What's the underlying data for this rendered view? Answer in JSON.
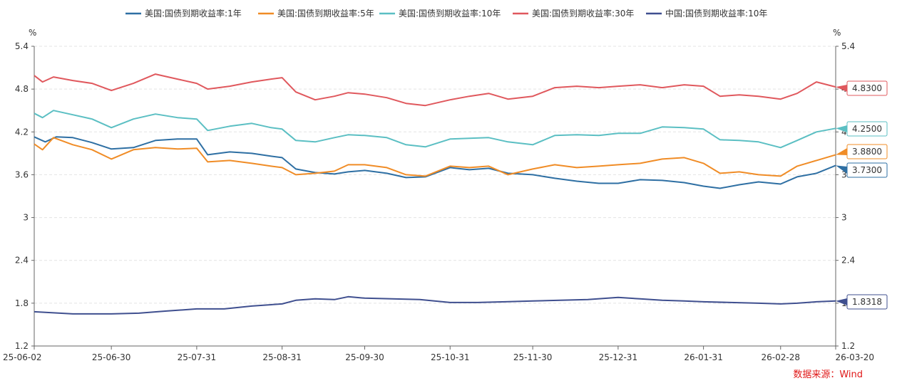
{
  "source_note": "数据来源：Wind",
  "chart_data": {
    "type": "line",
    "title": "",
    "y_unit_left": "%",
    "y_unit_right": "%",
    "ylim": [
      1.2,
      5.4
    ],
    "y_ticks": [
      "1.2",
      "1.8",
      "2.4",
      "3",
      "3.6",
      "4.2",
      "4.8",
      "5.4"
    ],
    "x_range": [
      "2025-06-02",
      "2026-03-20"
    ],
    "x_ticks": [
      {
        "label": "25-06-02",
        "date": "2025-06-02"
      },
      {
        "label": "25-06-30",
        "date": "2025-06-30"
      },
      {
        "label": "25-07-31",
        "date": "2025-07-31"
      },
      {
        "label": "25-08-31",
        "date": "2025-08-31"
      },
      {
        "label": "25-09-30",
        "date": "2025-09-30"
      },
      {
        "label": "25-10-31",
        "date": "2025-10-31"
      },
      {
        "label": "25-11-30",
        "date": "2025-11-30"
      },
      {
        "label": "25-12-31",
        "date": "2025-12-31"
      },
      {
        "label": "26-01-31",
        "date": "2026-01-31"
      },
      {
        "label": "26-02-28",
        "date": "2026-02-28"
      },
      {
        "label": "26-03-20",
        "date": "2026-03-20"
      }
    ],
    "grid": true,
    "legend_position": "top",
    "series": [
      {
        "name": "美国:国债到期收益率:1年",
        "color": "#2e6fa3",
        "last_label": "3.7300",
        "points": [
          [
            "2025-06-02",
            4.13
          ],
          [
            "2025-06-06",
            4.06
          ],
          [
            "2025-06-10",
            4.13
          ],
          [
            "2025-06-16",
            4.12
          ],
          [
            "2025-06-23",
            4.05
          ],
          [
            "2025-06-30",
            3.96
          ],
          [
            "2025-07-08",
            3.98
          ],
          [
            "2025-07-16",
            4.08
          ],
          [
            "2025-07-24",
            4.1
          ],
          [
            "2025-07-31",
            4.1
          ],
          [
            "2025-08-04",
            3.88
          ],
          [
            "2025-08-12",
            3.92
          ],
          [
            "2025-08-20",
            3.9
          ],
          [
            "2025-08-27",
            3.86
          ],
          [
            "2025-08-31",
            3.84
          ],
          [
            "2025-09-05",
            3.68
          ],
          [
            "2025-09-12",
            3.63
          ],
          [
            "2025-09-19",
            3.61
          ],
          [
            "2025-09-24",
            3.64
          ],
          [
            "2025-09-30",
            3.66
          ],
          [
            "2025-10-08",
            3.62
          ],
          [
            "2025-10-15",
            3.56
          ],
          [
            "2025-10-22",
            3.57
          ],
          [
            "2025-10-31",
            3.7
          ],
          [
            "2025-11-07",
            3.67
          ],
          [
            "2025-11-14",
            3.69
          ],
          [
            "2025-11-21",
            3.62
          ],
          [
            "2025-11-30",
            3.6
          ],
          [
            "2025-12-08",
            3.55
          ],
          [
            "2025-12-16",
            3.51
          ],
          [
            "2025-12-24",
            3.48
          ],
          [
            "2025-12-31",
            3.48
          ],
          [
            "2026-01-08",
            3.53
          ],
          [
            "2026-01-16",
            3.52
          ],
          [
            "2026-01-24",
            3.49
          ],
          [
            "2026-01-31",
            3.44
          ],
          [
            "2026-02-06",
            3.41
          ],
          [
            "2026-02-13",
            3.46
          ],
          [
            "2026-02-20",
            3.5
          ],
          [
            "2026-02-28",
            3.47
          ],
          [
            "2026-03-06",
            3.57
          ],
          [
            "2026-03-13",
            3.62
          ],
          [
            "2026-03-20",
            3.73
          ]
        ]
      },
      {
        "name": "美国:国债到期收益率:5年",
        "color": "#f08c26",
        "last_label": "3.8800",
        "points": [
          [
            "2025-06-02",
            4.03
          ],
          [
            "2025-06-05",
            3.95
          ],
          [
            "2025-06-09",
            4.12
          ],
          [
            "2025-06-16",
            4.02
          ],
          [
            "2025-06-23",
            3.95
          ],
          [
            "2025-06-30",
            3.82
          ],
          [
            "2025-07-08",
            3.95
          ],
          [
            "2025-07-16",
            3.98
          ],
          [
            "2025-07-24",
            3.96
          ],
          [
            "2025-07-31",
            3.97
          ],
          [
            "2025-08-04",
            3.78
          ],
          [
            "2025-08-12",
            3.8
          ],
          [
            "2025-08-20",
            3.76
          ],
          [
            "2025-08-27",
            3.72
          ],
          [
            "2025-08-31",
            3.7
          ],
          [
            "2025-09-05",
            3.6
          ],
          [
            "2025-09-12",
            3.62
          ],
          [
            "2025-09-19",
            3.65
          ],
          [
            "2025-09-24",
            3.74
          ],
          [
            "2025-09-30",
            3.74
          ],
          [
            "2025-10-08",
            3.7
          ],
          [
            "2025-10-15",
            3.6
          ],
          [
            "2025-10-22",
            3.58
          ],
          [
            "2025-10-31",
            3.72
          ],
          [
            "2025-11-07",
            3.7
          ],
          [
            "2025-11-14",
            3.72
          ],
          [
            "2025-11-21",
            3.6
          ],
          [
            "2025-11-30",
            3.68
          ],
          [
            "2025-12-08",
            3.74
          ],
          [
            "2025-12-16",
            3.7
          ],
          [
            "2025-12-24",
            3.72
          ],
          [
            "2025-12-31",
            3.74
          ],
          [
            "2026-01-08",
            3.76
          ],
          [
            "2026-01-16",
            3.82
          ],
          [
            "2026-01-24",
            3.84
          ],
          [
            "2026-01-31",
            3.76
          ],
          [
            "2026-02-06",
            3.62
          ],
          [
            "2026-02-13",
            3.64
          ],
          [
            "2026-02-20",
            3.6
          ],
          [
            "2026-02-28",
            3.58
          ],
          [
            "2026-03-06",
            3.72
          ],
          [
            "2026-03-13",
            3.8
          ],
          [
            "2026-03-20",
            3.88
          ]
        ]
      },
      {
        "name": "美国:国债到期收益率:10年",
        "color": "#5bbfc3",
        "last_label": "4.2500",
        "points": [
          [
            "2025-06-02",
            4.46
          ],
          [
            "2025-06-05",
            4.4
          ],
          [
            "2025-06-09",
            4.5
          ],
          [
            "2025-06-16",
            4.44
          ],
          [
            "2025-06-23",
            4.38
          ],
          [
            "2025-06-30",
            4.26
          ],
          [
            "2025-07-08",
            4.38
          ],
          [
            "2025-07-16",
            4.45
          ],
          [
            "2025-07-24",
            4.4
          ],
          [
            "2025-07-31",
            4.38
          ],
          [
            "2025-08-04",
            4.22
          ],
          [
            "2025-08-12",
            4.28
          ],
          [
            "2025-08-20",
            4.32
          ],
          [
            "2025-08-27",
            4.26
          ],
          [
            "2025-08-31",
            4.24
          ],
          [
            "2025-09-05",
            4.08
          ],
          [
            "2025-09-12",
            4.06
          ],
          [
            "2025-09-19",
            4.12
          ],
          [
            "2025-09-24",
            4.16
          ],
          [
            "2025-09-30",
            4.15
          ],
          [
            "2025-10-08",
            4.12
          ],
          [
            "2025-10-15",
            4.02
          ],
          [
            "2025-10-22",
            3.99
          ],
          [
            "2025-10-31",
            4.1
          ],
          [
            "2025-11-07",
            4.11
          ],
          [
            "2025-11-14",
            4.12
          ],
          [
            "2025-11-21",
            4.06
          ],
          [
            "2025-11-30",
            4.02
          ],
          [
            "2025-12-08",
            4.15
          ],
          [
            "2025-12-16",
            4.16
          ],
          [
            "2025-12-24",
            4.15
          ],
          [
            "2025-12-31",
            4.18
          ],
          [
            "2026-01-08",
            4.18
          ],
          [
            "2026-01-16",
            4.27
          ],
          [
            "2026-01-24",
            4.26
          ],
          [
            "2026-01-31",
            4.24
          ],
          [
            "2026-02-06",
            4.09
          ],
          [
            "2026-02-13",
            4.08
          ],
          [
            "2026-02-20",
            4.06
          ],
          [
            "2026-02-28",
            3.98
          ],
          [
            "2026-03-06",
            4.08
          ],
          [
            "2026-03-13",
            4.2
          ],
          [
            "2026-03-20",
            4.25
          ]
        ]
      },
      {
        "name": "美国:国债到期收益率:30年",
        "color": "#e0585d",
        "last_label": "4.8300",
        "points": [
          [
            "2025-06-02",
            4.99
          ],
          [
            "2025-06-05",
            4.9
          ],
          [
            "2025-06-09",
            4.97
          ],
          [
            "2025-06-16",
            4.92
          ],
          [
            "2025-06-23",
            4.88
          ],
          [
            "2025-06-30",
            4.78
          ],
          [
            "2025-07-08",
            4.88
          ],
          [
            "2025-07-16",
            5.01
          ],
          [
            "2025-07-24",
            4.94
          ],
          [
            "2025-07-31",
            4.88
          ],
          [
            "2025-08-04",
            4.8
          ],
          [
            "2025-08-12",
            4.84
          ],
          [
            "2025-08-20",
            4.9
          ],
          [
            "2025-08-27",
            4.94
          ],
          [
            "2025-08-31",
            4.96
          ],
          [
            "2025-09-05",
            4.76
          ],
          [
            "2025-09-12",
            4.65
          ],
          [
            "2025-09-19",
            4.7
          ],
          [
            "2025-09-24",
            4.75
          ],
          [
            "2025-09-30",
            4.73
          ],
          [
            "2025-10-08",
            4.68
          ],
          [
            "2025-10-15",
            4.6
          ],
          [
            "2025-10-22",
            4.57
          ],
          [
            "2025-10-31",
            4.65
          ],
          [
            "2025-11-07",
            4.7
          ],
          [
            "2025-11-14",
            4.74
          ],
          [
            "2025-11-21",
            4.66
          ],
          [
            "2025-11-30",
            4.7
          ],
          [
            "2025-12-08",
            4.82
          ],
          [
            "2025-12-16",
            4.84
          ],
          [
            "2025-12-24",
            4.82
          ],
          [
            "2025-12-31",
            4.84
          ],
          [
            "2026-01-08",
            4.86
          ],
          [
            "2026-01-16",
            4.82
          ],
          [
            "2026-01-24",
            4.86
          ],
          [
            "2026-01-31",
            4.84
          ],
          [
            "2026-02-06",
            4.7
          ],
          [
            "2026-02-13",
            4.72
          ],
          [
            "2026-02-20",
            4.7
          ],
          [
            "2026-02-28",
            4.66
          ],
          [
            "2026-03-06",
            4.74
          ],
          [
            "2026-03-13",
            4.9
          ],
          [
            "2026-03-20",
            4.83
          ]
        ]
      },
      {
        "name": "中国:国债到期收益率:10年",
        "color": "#3f4f8f",
        "last_label": "1.8318",
        "points": [
          [
            "2025-06-02",
            1.68
          ],
          [
            "2025-06-16",
            1.65
          ],
          [
            "2025-06-30",
            1.65
          ],
          [
            "2025-07-10",
            1.66
          ],
          [
            "2025-07-20",
            1.69
          ],
          [
            "2025-07-31",
            1.72
          ],
          [
            "2025-08-10",
            1.72
          ],
          [
            "2025-08-20",
            1.76
          ],
          [
            "2025-08-31",
            1.79
          ],
          [
            "2025-09-05",
            1.84
          ],
          [
            "2025-09-12",
            1.86
          ],
          [
            "2025-09-19",
            1.85
          ],
          [
            "2025-09-24",
            1.89
          ],
          [
            "2025-09-30",
            1.87
          ],
          [
            "2025-10-10",
            1.86
          ],
          [
            "2025-10-20",
            1.85
          ],
          [
            "2025-10-31",
            1.81
          ],
          [
            "2025-11-10",
            1.81
          ],
          [
            "2025-11-20",
            1.82
          ],
          [
            "2025-11-30",
            1.83
          ],
          [
            "2025-12-10",
            1.84
          ],
          [
            "2025-12-20",
            1.85
          ],
          [
            "2025-12-31",
            1.88
          ],
          [
            "2026-01-08",
            1.86
          ],
          [
            "2026-01-16",
            1.84
          ],
          [
            "2026-01-24",
            1.83
          ],
          [
            "2026-01-31",
            1.82
          ],
          [
            "2026-02-10",
            1.81
          ],
          [
            "2026-02-20",
            1.8
          ],
          [
            "2026-02-28",
            1.79
          ],
          [
            "2026-03-06",
            1.8
          ],
          [
            "2026-03-13",
            1.82
          ],
          [
            "2026-03-20",
            1.83
          ]
        ]
      }
    ]
  }
}
